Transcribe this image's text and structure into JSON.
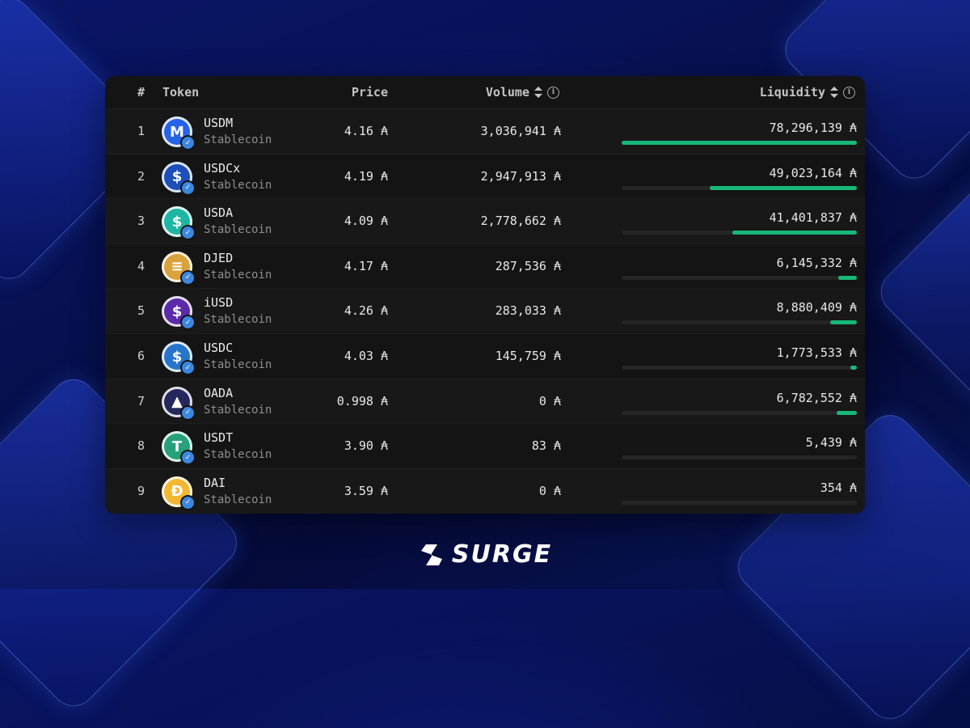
{
  "table": {
    "headers": {
      "rank": "#",
      "token": "Token",
      "price": "Price",
      "volume": "Volume",
      "liquidity": "Liquidity"
    },
    "currency_symbol": "₳",
    "rows": [
      {
        "rank": "1",
        "name": "USDM",
        "category": "Stablecoin",
        "price": "4.16 ₳",
        "volume": "3,036,941 ₳",
        "liquidity": "78,296,139 ₳",
        "liquidity_share": 1.0,
        "logo_icon": "usdm-logo-icon",
        "logo_glyph": "M",
        "logo_color": "#2563eb"
      },
      {
        "rank": "2",
        "name": "USDCx",
        "category": "Stablecoin",
        "price": "4.19 ₳",
        "volume": "2,947,913 ₳",
        "liquidity": "49,023,164 ₳",
        "liquidity_share": 0.626,
        "logo_icon": "usdcx-logo-icon",
        "logo_glyph": "$",
        "logo_color": "#1d4fb8"
      },
      {
        "rank": "3",
        "name": "USDA",
        "category": "Stablecoin",
        "price": "4.09 ₳",
        "volume": "2,778,662 ₳",
        "liquidity": "41,401,837 ₳",
        "liquidity_share": 0.529,
        "logo_icon": "usda-logo-icon",
        "logo_glyph": "$",
        "logo_color": "#1fb5a3"
      },
      {
        "rank": "4",
        "name": "DJED",
        "category": "Stablecoin",
        "price": "4.17 ₳",
        "volume": "287,536 ₳",
        "liquidity": "6,145,332 ₳",
        "liquidity_share": 0.078,
        "logo_icon": "djed-logo-icon",
        "logo_glyph": "≡",
        "logo_color": "#d9a23a"
      },
      {
        "rank": "5",
        "name": "iUSD",
        "category": "Stablecoin",
        "price": "4.26 ₳",
        "volume": "283,033 ₳",
        "liquidity": "8,880,409 ₳",
        "liquidity_share": 0.113,
        "logo_icon": "iusd-logo-icon",
        "logo_glyph": "$",
        "logo_color": "#5b2aa8"
      },
      {
        "rank": "6",
        "name": "USDC",
        "category": "Stablecoin",
        "price": "4.03 ₳",
        "volume": "145,759 ₳",
        "liquidity": "1,773,533 ₳",
        "liquidity_share": 0.023,
        "logo_icon": "usdc-logo-icon",
        "logo_glyph": "$",
        "logo_color": "#2775ca"
      },
      {
        "rank": "7",
        "name": "OADA",
        "category": "Stablecoin",
        "price": "0.998 ₳",
        "volume": "0 ₳",
        "liquidity": "6,782,552 ₳",
        "liquidity_share": 0.087,
        "logo_icon": "oada-logo-icon",
        "logo_glyph": "▲",
        "logo_color": "#24285c"
      },
      {
        "rank": "8",
        "name": "USDT",
        "category": "Stablecoin",
        "price": "3.90 ₳",
        "volume": "83 ₳",
        "liquidity": "5,439 ₳",
        "liquidity_share": 0.0,
        "logo_icon": "usdt-logo-icon",
        "logo_glyph": "T",
        "logo_color": "#26a17b"
      },
      {
        "rank": "9",
        "name": "DAI",
        "category": "Stablecoin",
        "price": "3.59 ₳",
        "volume": "0 ₳",
        "liquidity": "354 ₳",
        "liquidity_share": 0.0,
        "logo_icon": "dai-logo-icon",
        "logo_glyph": "Đ",
        "logo_color": "#f4b731"
      }
    ]
  },
  "brand": {
    "name": "SURGE",
    "logo_icon": "surge-logo-icon"
  },
  "colors": {
    "bar_fill": "#17b878",
    "verified_badge": "#3b87e0"
  }
}
